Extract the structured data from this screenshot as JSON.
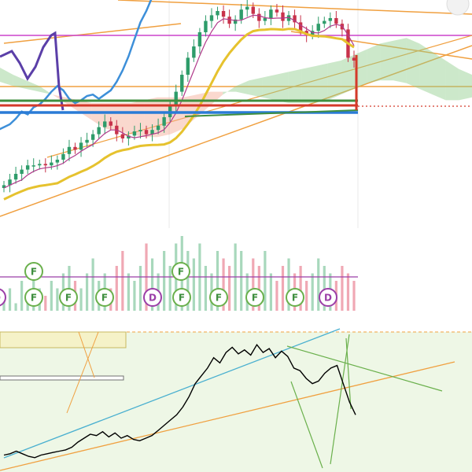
{
  "chart_data": [
    {
      "type": "candlestick",
      "panel": "price",
      "title": "",
      "overlays": [
        "ichimoku-cloud",
        "kijun",
        "tenkan",
        "moving-averages",
        "trendlines",
        "horizontal-levels"
      ],
      "close": [
        22,
        26,
        30,
        33,
        36,
        36,
        37,
        36,
        38,
        40,
        44,
        49,
        47,
        52,
        54,
        58,
        63,
        67,
        64,
        58,
        55,
        57,
        60,
        61,
        58,
        61,
        64,
        70,
        78,
        88,
        100,
        112,
        120,
        130,
        138,
        142,
        145,
        141,
        136,
        139,
        146,
        148,
        143,
        138,
        140,
        146,
        144,
        138,
        142,
        137,
        131,
        128,
        131,
        136,
        138,
        140,
        136,
        132,
        112,
        110
      ],
      "cloud_span_a": [
        105,
        100,
        96,
        92,
        86,
        80,
        74,
        68,
        62,
        60,
        58,
        56,
        56,
        58,
        62,
        70,
        78,
        86,
        92,
        96,
        98,
        100,
        102,
        104,
        106,
        108,
        110,
        114,
        118,
        122,
        124,
        126,
        122,
        116,
        110,
        104,
        100
      ],
      "cloud_span_b": [
        95,
        92,
        90,
        88,
        86,
        84,
        82,
        80,
        80,
        80,
        80,
        82,
        84,
        84,
        84,
        86,
        88,
        88,
        88,
        86,
        84,
        82,
        80,
        80,
        80,
        82,
        86,
        90,
        94,
        96,
        96,
        94,
        90,
        86,
        82,
        82,
        84
      ],
      "colors": {
        "up": "#2e9c6a",
        "down": "#c8324b",
        "cloud_up": "#8fcb8a",
        "cloud_down": "#f3a893",
        "kijun": "#2a7bd6",
        "tenkan": "#b03a8a",
        "lagging": "#3d8fd9",
        "ma_yellow": "#e6c22e",
        "ma_green": "#3f8f3f",
        "ma_red": "#d43a2a",
        "magenta_level": "#cc44cc",
        "orange_level": "#f0a040"
      }
    },
    {
      "type": "bar",
      "panel": "volume",
      "values": [
        2,
        3,
        1,
        4,
        2,
        5,
        3,
        2,
        4,
        3,
        5,
        6,
        4,
        3,
        5,
        7,
        4,
        5,
        3,
        6,
        8,
        5,
        4,
        6,
        9,
        7,
        5,
        8,
        6,
        9,
        10,
        8,
        7,
        9,
        6,
        5,
        8,
        7,
        6,
        9,
        8,
        5,
        7,
        6,
        8,
        5,
        4,
        6,
        7,
        5,
        6,
        4,
        5,
        7,
        6,
        5,
        4,
        6,
        5,
        4
      ],
      "badges_top": [
        "F",
        "F"
      ],
      "badges_bottom": [
        "D",
        "F",
        "F",
        "F",
        "D",
        "F",
        "F",
        "F",
        "F",
        "D",
        "F"
      ]
    },
    {
      "type": "line",
      "panel": "oscillator",
      "values": [
        7,
        8,
        10,
        8,
        6,
        5,
        7,
        8,
        9,
        10,
        11,
        13,
        17,
        20,
        23,
        22,
        25,
        21,
        24,
        20,
        22,
        19,
        18,
        20,
        22,
        26,
        30,
        34,
        38,
        44,
        52,
        62,
        68,
        74,
        82,
        78,
        86,
        90,
        85,
        88,
        84,
        92,
        86,
        89,
        82,
        87,
        83,
        74,
        72,
        66,
        62,
        64,
        70,
        74,
        76,
        62,
        48,
        38
      ]
    }
  ]
}
